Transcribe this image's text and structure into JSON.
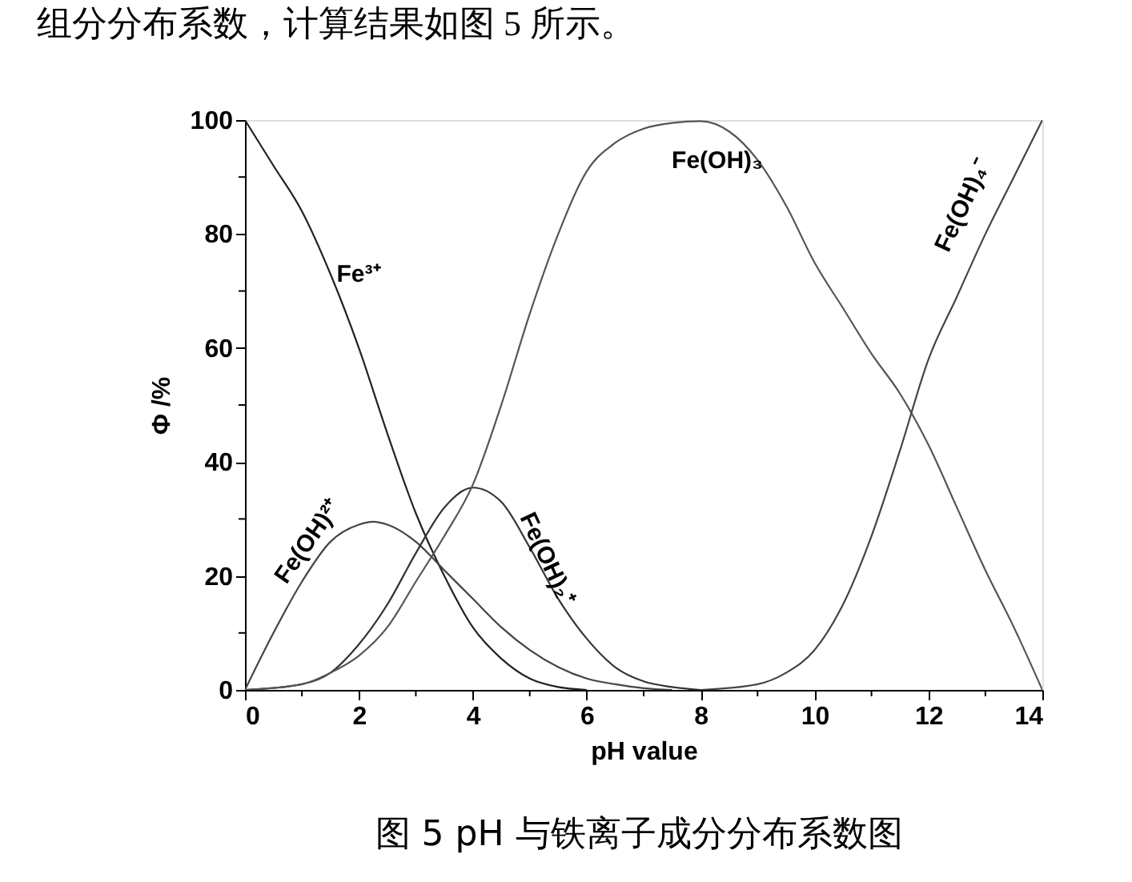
{
  "chart_data": {
    "type": "line",
    "xlabel": "pH value",
    "ylabel": "Φ /%",
    "xlim": [
      0,
      14
    ],
    "ylim": [
      0,
      100
    ],
    "xticks": [
      0,
      {
        "value": 1,
        "label": null
      },
      2,
      {
        "value": 3,
        "label": null
      },
      4,
      {
        "value": 5,
        "label": null
      },
      6,
      {
        "value": 7,
        "label": null
      },
      8,
      {
        "value": 9,
        "label": null
      },
      10,
      {
        "value": 11,
        "label": null
      },
      12,
      {
        "value": 13,
        "label": null
      },
      14
    ],
    "yticks": [
      0,
      {
        "value": 10,
        "label": null
      },
      20,
      {
        "value": 30,
        "label": null
      },
      40,
      {
        "value": 50,
        "label": null
      },
      60,
      {
        "value": 70,
        "label": null
      },
      80,
      {
        "value": 90,
        "label": null
      },
      100
    ],
    "grid": false,
    "legend": false,
    "marker": "none",
    "line_style": "solid",
    "series": [
      {
        "color": "#222222",
        "x": [
          0,
          0.5,
          1,
          1.5,
          2,
          2.5,
          3,
          3.5,
          4,
          4.5,
          5,
          5.5,
          6
        ],
        "values": [
          100,
          92,
          84,
          73,
          60,
          45,
          31,
          20,
          11,
          5.5,
          2,
          0.5,
          0
        ]
      },
      {
        "color": "#444444",
        "x": [
          0,
          0.5,
          1,
          1.5,
          2,
          2.25,
          2.5,
          3,
          3.5,
          4,
          4.5,
          5,
          5.5,
          6,
          6.5,
          7,
          7.5
        ],
        "values": [
          0,
          10,
          19,
          26,
          29,
          29.5,
          29,
          26,
          21,
          16,
          11,
          7,
          4,
          2,
          1,
          0.3,
          0
        ]
      },
      {
        "color": "#333333",
        "x": [
          0,
          1,
          1.5,
          2,
          2.5,
          3,
          3.5,
          4,
          4.5,
          5,
          5.5,
          6,
          6.5,
          7,
          7.5,
          8
        ],
        "values": [
          0,
          1,
          3,
          8,
          15,
          24,
          32,
          35.5,
          33,
          25,
          16,
          9,
          4,
          1.5,
          0.5,
          0
        ]
      },
      {
        "color": "#555555",
        "x": [
          0,
          1,
          1.5,
          2,
          2.5,
          3,
          3.5,
          4,
          4.5,
          5,
          5.5,
          6,
          6.5,
          7,
          7.5,
          8,
          8.5,
          9,
          9.5,
          10,
          10.5,
          11,
          11.5,
          12,
          12.5,
          13,
          13.5,
          14
        ],
        "values": [
          0,
          1,
          3,
          6,
          11,
          19,
          27,
          36,
          50,
          66,
          80,
          91,
          96,
          98.5,
          99.5,
          99.8,
          98,
          93,
          85,
          75,
          67,
          59,
          52,
          43,
          32,
          21,
          11,
          0
        ]
      },
      {
        "color": "#444444",
        "x": [
          8,
          9,
          9.5,
          10,
          10.5,
          11,
          11.5,
          12,
          12.5,
          13,
          13.5,
          14
        ],
        "values": [
          0,
          1,
          3,
          7,
          15,
          27,
          42,
          58,
          69,
          80,
          90,
          100
        ]
      }
    ],
    "annotations": [
      "Fe³⁺",
      "Fe(OH)²⁺",
      "Fe(OH)₂⁺",
      "Fe(OH)₃",
      "Fe(OH)₄⁻",
      "组分分布系数，计算结果如图 5 所示。",
      "图 5    pH 与铁离子成分分布系数图"
    ]
  }
}
